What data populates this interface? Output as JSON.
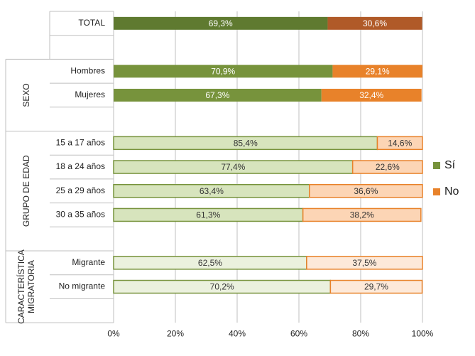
{
  "chart_data": {
    "type": "stacked_barh",
    "categories": [
      "TOTAL",
      "Hombres",
      "Mujeres",
      "15 a 17 años",
      "18 a 24 años",
      "25 a 29 años",
      "30 a 35 años",
      "Migrante",
      "No migrante"
    ],
    "groups": [
      [
        "SEXO"
      ],
      [
        "GRUPO DE EDAD"
      ],
      [
        "CARACTERÍSTICA",
        "MIGRATORIA"
      ]
    ],
    "series": [
      {
        "name": "Sí",
        "color": "#77933c",
        "colors": [
          "#5f7a30",
          "#77933c",
          "#77933c",
          "#d7e4bd",
          "#d7e4bd",
          "#d7e4bd",
          "#d7e4bd",
          "#ebf1de",
          "#ebf1de"
        ],
        "values": [
          69.3,
          70.9,
          67.3,
          85.4,
          77.4,
          63.4,
          61.3,
          62.5,
          70.2
        ],
        "value_labels": [
          "69,3%",
          "70,9%",
          "67,3%",
          "85,4%",
          "77,4%",
          "63,4%",
          "61,3%",
          "62,5%",
          "70,2%"
        ]
      },
      {
        "name": "No",
        "color": "#e8822a",
        "colors": [
          "#b05a28",
          "#e8822a",
          "#e8822a",
          "#fcd5b5",
          "#fcd5b5",
          "#fcd5b5",
          "#fcd5b5",
          "#fde9d9",
          "#fde9d9"
        ],
        "values": [
          30.6,
          29.1,
          32.4,
          14.6,
          22.6,
          36.6,
          38.2,
          37.5,
          29.7
        ],
        "value_labels": [
          "30,6%",
          "29,1%",
          "32,4%",
          "14,6%",
          "22,6%",
          "36,6%",
          "38,2%",
          "37,5%",
          "29,7%"
        ]
      }
    ],
    "xlim": [
      0,
      100
    ],
    "xticks": [
      {
        "value": 0,
        "label": "0%"
      },
      {
        "value": 20,
        "label": "20%"
      },
      {
        "value": 40,
        "label": "40%"
      },
      {
        "value": 60,
        "label": "60%"
      },
      {
        "value": 80,
        "label": "80%"
      },
      {
        "value": 100,
        "label": "100%"
      }
    ],
    "grid": true,
    "legend": "right"
  }
}
